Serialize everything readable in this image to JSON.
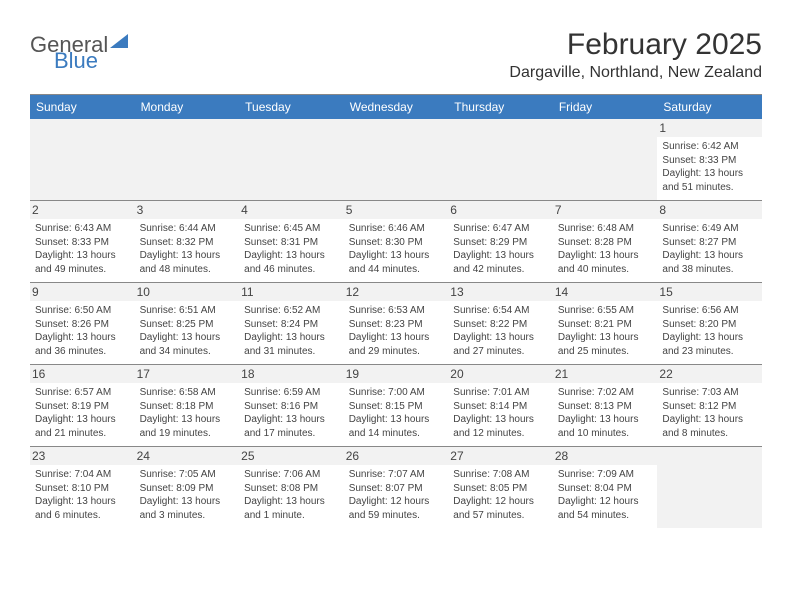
{
  "logo": {
    "line1": "General",
    "line2": "Blue"
  },
  "title": "February 2025",
  "location": "Dargaville, Northland, New Zealand",
  "colors": {
    "header_bg": "#3b7bbf",
    "header_text": "#ffffff",
    "daynum_bg": "#f2f2f2",
    "border": "#888888",
    "text": "#444444"
  },
  "weekdays": [
    "Sunday",
    "Monday",
    "Tuesday",
    "Wednesday",
    "Thursday",
    "Friday",
    "Saturday"
  ],
  "weeks": [
    [
      null,
      null,
      null,
      null,
      null,
      null,
      {
        "n": "1",
        "sr": "Sunrise: 6:42 AM",
        "ss": "Sunset: 8:33 PM",
        "dl": "Daylight: 13 hours and 51 minutes."
      }
    ],
    [
      {
        "n": "2",
        "sr": "Sunrise: 6:43 AM",
        "ss": "Sunset: 8:33 PM",
        "dl": "Daylight: 13 hours and 49 minutes."
      },
      {
        "n": "3",
        "sr": "Sunrise: 6:44 AM",
        "ss": "Sunset: 8:32 PM",
        "dl": "Daylight: 13 hours and 48 minutes."
      },
      {
        "n": "4",
        "sr": "Sunrise: 6:45 AM",
        "ss": "Sunset: 8:31 PM",
        "dl": "Daylight: 13 hours and 46 minutes."
      },
      {
        "n": "5",
        "sr": "Sunrise: 6:46 AM",
        "ss": "Sunset: 8:30 PM",
        "dl": "Daylight: 13 hours and 44 minutes."
      },
      {
        "n": "6",
        "sr": "Sunrise: 6:47 AM",
        "ss": "Sunset: 8:29 PM",
        "dl": "Daylight: 13 hours and 42 minutes."
      },
      {
        "n": "7",
        "sr": "Sunrise: 6:48 AM",
        "ss": "Sunset: 8:28 PM",
        "dl": "Daylight: 13 hours and 40 minutes."
      },
      {
        "n": "8",
        "sr": "Sunrise: 6:49 AM",
        "ss": "Sunset: 8:27 PM",
        "dl": "Daylight: 13 hours and 38 minutes."
      }
    ],
    [
      {
        "n": "9",
        "sr": "Sunrise: 6:50 AM",
        "ss": "Sunset: 8:26 PM",
        "dl": "Daylight: 13 hours and 36 minutes."
      },
      {
        "n": "10",
        "sr": "Sunrise: 6:51 AM",
        "ss": "Sunset: 8:25 PM",
        "dl": "Daylight: 13 hours and 34 minutes."
      },
      {
        "n": "11",
        "sr": "Sunrise: 6:52 AM",
        "ss": "Sunset: 8:24 PM",
        "dl": "Daylight: 13 hours and 31 minutes."
      },
      {
        "n": "12",
        "sr": "Sunrise: 6:53 AM",
        "ss": "Sunset: 8:23 PM",
        "dl": "Daylight: 13 hours and 29 minutes."
      },
      {
        "n": "13",
        "sr": "Sunrise: 6:54 AM",
        "ss": "Sunset: 8:22 PM",
        "dl": "Daylight: 13 hours and 27 minutes."
      },
      {
        "n": "14",
        "sr": "Sunrise: 6:55 AM",
        "ss": "Sunset: 8:21 PM",
        "dl": "Daylight: 13 hours and 25 minutes."
      },
      {
        "n": "15",
        "sr": "Sunrise: 6:56 AM",
        "ss": "Sunset: 8:20 PM",
        "dl": "Daylight: 13 hours and 23 minutes."
      }
    ],
    [
      {
        "n": "16",
        "sr": "Sunrise: 6:57 AM",
        "ss": "Sunset: 8:19 PM",
        "dl": "Daylight: 13 hours and 21 minutes."
      },
      {
        "n": "17",
        "sr": "Sunrise: 6:58 AM",
        "ss": "Sunset: 8:18 PM",
        "dl": "Daylight: 13 hours and 19 minutes."
      },
      {
        "n": "18",
        "sr": "Sunrise: 6:59 AM",
        "ss": "Sunset: 8:16 PM",
        "dl": "Daylight: 13 hours and 17 minutes."
      },
      {
        "n": "19",
        "sr": "Sunrise: 7:00 AM",
        "ss": "Sunset: 8:15 PM",
        "dl": "Daylight: 13 hours and 14 minutes."
      },
      {
        "n": "20",
        "sr": "Sunrise: 7:01 AM",
        "ss": "Sunset: 8:14 PM",
        "dl": "Daylight: 13 hours and 12 minutes."
      },
      {
        "n": "21",
        "sr": "Sunrise: 7:02 AM",
        "ss": "Sunset: 8:13 PM",
        "dl": "Daylight: 13 hours and 10 minutes."
      },
      {
        "n": "22",
        "sr": "Sunrise: 7:03 AM",
        "ss": "Sunset: 8:12 PM",
        "dl": "Daylight: 13 hours and 8 minutes."
      }
    ],
    [
      {
        "n": "23",
        "sr": "Sunrise: 7:04 AM",
        "ss": "Sunset: 8:10 PM",
        "dl": "Daylight: 13 hours and 6 minutes."
      },
      {
        "n": "24",
        "sr": "Sunrise: 7:05 AM",
        "ss": "Sunset: 8:09 PM",
        "dl": "Daylight: 13 hours and 3 minutes."
      },
      {
        "n": "25",
        "sr": "Sunrise: 7:06 AM",
        "ss": "Sunset: 8:08 PM",
        "dl": "Daylight: 13 hours and 1 minute."
      },
      {
        "n": "26",
        "sr": "Sunrise: 7:07 AM",
        "ss": "Sunset: 8:07 PM",
        "dl": "Daylight: 12 hours and 59 minutes."
      },
      {
        "n": "27",
        "sr": "Sunrise: 7:08 AM",
        "ss": "Sunset: 8:05 PM",
        "dl": "Daylight: 12 hours and 57 minutes."
      },
      {
        "n": "28",
        "sr": "Sunrise: 7:09 AM",
        "ss": "Sunset: 8:04 PM",
        "dl": "Daylight: 12 hours and 54 minutes."
      },
      null
    ]
  ]
}
